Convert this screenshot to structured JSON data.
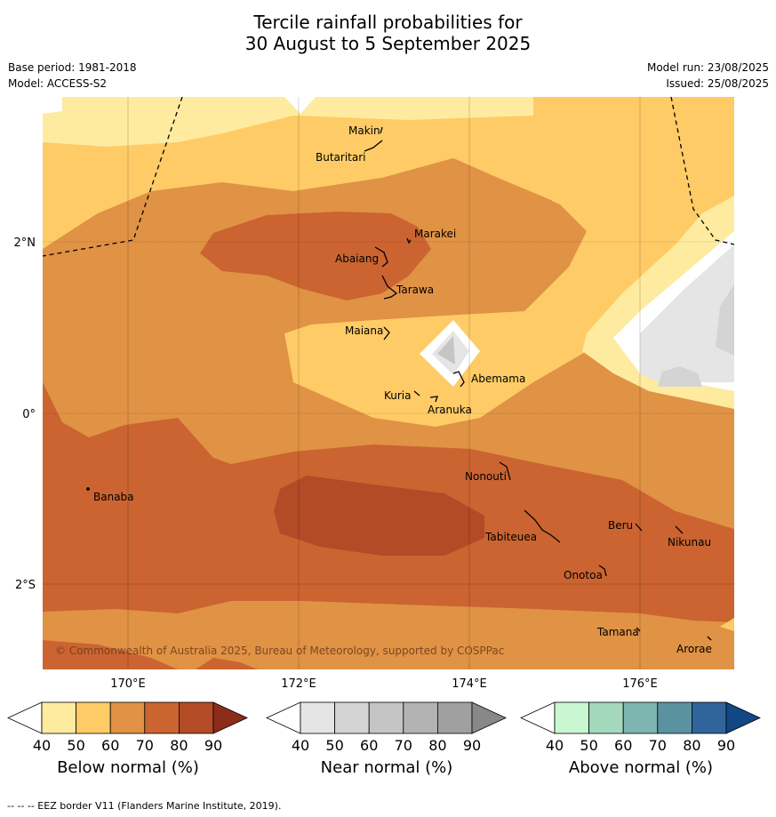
{
  "title": {
    "line1": "Tercile rainfall probabilities for",
    "line2": "30 August to 5 September 2025"
  },
  "meta": {
    "base_period": "Base period: 1981-2018",
    "model": "Model: ACCESS-S2",
    "model_run": "Model run: 23/08/2025",
    "issued": "Issued: 25/08/2025"
  },
  "map": {
    "copyright": "© Commonwealth of Australia 2025, Bureau of Meteorology, supported by COSPPac",
    "lat_labels": [
      "2°N",
      "0°",
      "2°S"
    ],
    "lon_labels": [
      "170°E",
      "172°E",
      "174°E",
      "176°E"
    ],
    "islands": [
      "Makin",
      "Butaritari",
      "Marakei",
      "Abaiang",
      "Tarawa",
      "Maiana",
      "Abemama",
      "Kuria",
      "Aranuka",
      "Nonouti",
      "Banaba",
      "Tabiteuea",
      "Beru",
      "Nikunau",
      "Onotoa",
      "Tamana",
      "Arorae"
    ]
  },
  "colorbars": [
    {
      "title": "Below normal (%)",
      "ticks": [
        "40",
        "50",
        "60",
        "70",
        "80",
        "90"
      ],
      "colors": [
        "#ffffff",
        "#feeb9f",
        "#fecb66",
        "#e09245",
        "#cb6431",
        "#b24b26",
        "#8c2d1a"
      ]
    },
    {
      "title": "Near normal (%)",
      "ticks": [
        "40",
        "50",
        "60",
        "70",
        "80",
        "90"
      ],
      "colors": [
        "#ffffff",
        "#e5e5e5",
        "#d4d4d4",
        "#c5c5c5",
        "#b3b3b3",
        "#a0a0a0",
        "#888888"
      ]
    },
    {
      "title": "Above normal (%)",
      "ticks": [
        "40",
        "50",
        "60",
        "70",
        "80",
        "90"
      ],
      "colors": [
        "#ffffff",
        "#c9f7cf",
        "#a4d8bd",
        "#7fb5b0",
        "#5b92a1",
        "#30649b",
        "#114784"
      ]
    }
  ],
  "footer": "--  --  -- EEZ border V11 (Flanders Marine Institute, 2019)."
}
